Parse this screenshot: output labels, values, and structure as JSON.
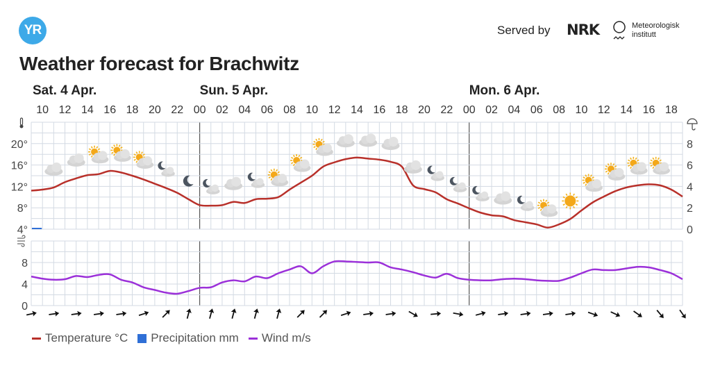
{
  "header": {
    "logo_text": "YR",
    "served_by": "Served by",
    "nrk_logo": "NRK",
    "met_line1": "Meteorologisk",
    "met_line2": "institutt"
  },
  "title": "Weather forecast for Brachwitz",
  "legend": [
    {
      "label": "Temperature °C",
      "color": "#b8302a"
    },
    {
      "label": "Precipitation mm",
      "color": "#2f6fd6"
    },
    {
      "label": "Wind m/s",
      "color": "#9b30d9"
    }
  ],
  "chart_data": {
    "type": "line",
    "days": [
      {
        "label": "Sat. 4 Apr.",
        "hour": 10
      },
      {
        "label": "Sun. 5 Apr.",
        "hour": 24
      },
      {
        "label": "Mon. 6 Apr.",
        "hour": 48
      }
    ],
    "hour_range": [
      9,
      67
    ],
    "hour_ticks": [
      "10",
      "12",
      "14",
      "16",
      "18",
      "20",
      "22",
      "00",
      "02",
      "04",
      "06",
      "08",
      "10",
      "12",
      "14",
      "16",
      "18",
      "20",
      "22",
      "00",
      "02",
      "04",
      "06",
      "08",
      "10",
      "12",
      "14",
      "16",
      "18"
    ],
    "temperature": {
      "unit": "°C",
      "ylim": [
        4,
        24
      ],
      "ticks": [
        "4°",
        "8°",
        "12°",
        "16°",
        "20°"
      ],
      "values": [
        11.2,
        11.4,
        11.8,
        12.8,
        13.5,
        14.1,
        14.3,
        14.9,
        14.6,
        14.0,
        13.3,
        12.5,
        11.7,
        10.8,
        9.6,
        8.5,
        8.4,
        8.5,
        9.1,
        8.9,
        9.6,
        9.7,
        10.0,
        11.4,
        12.7,
        14.0,
        15.7,
        16.5,
        17.1,
        17.4,
        17.2,
        17.0,
        16.6,
        15.7,
        12.2,
        11.5,
        10.9,
        9.6,
        8.8,
        7.9,
        7.1,
        6.6,
        6.4,
        5.7,
        5.3,
        4.9,
        4.3,
        4.9,
        5.9,
        7.5,
        9.0,
        10.1,
        11.1,
        11.8,
        12.2,
        12.4,
        12.2,
        11.4,
        10.1
      ]
    },
    "precipitation": {
      "unit": "mm",
      "ylim": [
        0,
        10
      ],
      "ticks": [
        "0",
        "2",
        "4",
        "6",
        "8"
      ],
      "values": [
        0.1
      ]
    },
    "wind": {
      "unit": "m/s",
      "ylim": [
        0,
        12
      ],
      "ticks": [
        "0",
        "4",
        "8"
      ],
      "values": [
        5.4,
        5.0,
        4.8,
        4.9,
        5.5,
        5.3,
        5.7,
        5.8,
        4.8,
        4.3,
        3.4,
        2.9,
        2.4,
        2.2,
        2.7,
        3.3,
        3.4,
        4.3,
        4.7,
        4.5,
        5.4,
        5.1,
        6.0,
        6.7,
        7.3,
        6.0,
        7.3,
        8.2,
        8.2,
        8.1,
        8.0,
        8.0,
        7.1,
        6.7,
        6.2,
        5.6,
        5.2,
        5.9,
        5.1,
        4.8,
        4.7,
        4.7,
        4.9,
        5.0,
        4.9,
        4.7,
        4.6,
        4.6,
        5.2,
        6.0,
        6.7,
        6.6,
        6.6,
        6.9,
        7.2,
        7.1,
        6.6,
        6.0,
        4.9
      ],
      "arrow_start_hour": 9,
      "arrow_step_hours": 2,
      "arrow_directions_deg": [
        -12,
        -8,
        -8,
        -8,
        -8,
        -18,
        -45,
        -75,
        -75,
        -75,
        -75,
        -75,
        -45,
        -45,
        -18,
        -8,
        -8,
        30,
        -5,
        10,
        -15,
        -8,
        -8,
        -8,
        -8,
        20,
        25,
        35,
        50,
        55
      ]
    },
    "symbols": {
      "start_hour": 11,
      "step_hours": 2,
      "types": [
        "cloudy",
        "cloudy",
        "partlycloudy_day",
        "partlycloudy_day",
        "partlycloudy_day",
        "partlycloudy_night",
        "clearsky_night",
        "partlycloudy_night",
        "cloudy",
        "partlycloudy_night",
        "partlycloudy_day",
        "partlycloudy_day",
        "partlycloudy_day",
        "cloudy",
        "cloudy",
        "cloudy",
        "cloudy",
        "partlycloudy_night",
        "partlycloudy_night",
        "partlycloudy_night",
        "cloudy",
        "partlycloudy_night",
        "partlycloudy_day",
        "clearsky_day",
        "partlycloudy_day",
        "partlycloudy_day",
        "partlycloudy_day",
        "partlycloudy_day"
      ]
    },
    "icons": {
      "temperature_axis": "thermometer-icon",
      "precipitation_axis": "umbrella-icon",
      "wind_axis": "wind-icon"
    }
  }
}
